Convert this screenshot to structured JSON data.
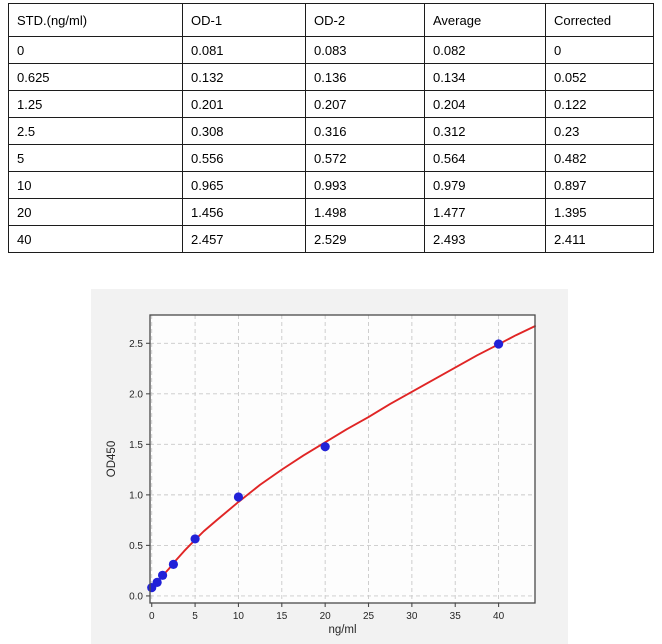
{
  "table": {
    "headers": [
      "STD.(ng/ml)",
      "OD-1",
      "OD-2",
      "Average",
      "Corrected"
    ],
    "rows": [
      [
        "0",
        "0.081",
        "0.083",
        "0.082",
        "0"
      ],
      [
        "0.625",
        "0.132",
        "0.136",
        "0.134",
        "0.052"
      ],
      [
        "1.25",
        "0.201",
        "0.207",
        "0.204",
        "0.122"
      ],
      [
        "2.5",
        "0.308",
        "0.316",
        "0.312",
        "0.23"
      ],
      [
        "5",
        "0.556",
        "0.572",
        "0.564",
        "0.482"
      ],
      [
        "10",
        "0.965",
        "0.993",
        "0.979",
        "0.897"
      ],
      [
        "20",
        "1.456",
        "1.498",
        "1.477",
        "1.395"
      ],
      [
        "40",
        "2.457",
        "2.529",
        "2.493",
        "2.411"
      ]
    ]
  },
  "chart_data": {
    "type": "scatter",
    "title": "",
    "xlabel": "ng/ml",
    "ylabel": "OD450",
    "xlim": [
      -0.2,
      44.2
    ],
    "ylim": [
      -0.07,
      2.78
    ],
    "grid": "dashed",
    "legend_position": "none",
    "x_ticks": [
      0,
      5,
      10,
      15,
      20,
      25,
      30,
      35,
      40
    ],
    "x_tick_labels": [
      "0",
      "5",
      "10",
      "15",
      "20",
      "25",
      "30",
      "35",
      "40"
    ],
    "y_ticks": [
      0.0,
      0.5,
      1.0,
      1.5,
      2.0,
      2.5
    ],
    "y_tick_labels": [
      "0.0",
      "0.5",
      "1.0",
      "1.5",
      "2.0",
      "2.5"
    ],
    "series": [
      {
        "name": "standard-points",
        "type": "scatter",
        "x": [
          0,
          0.625,
          1.25,
          2.5,
          5,
          10,
          20,
          40
        ],
        "y": [
          0.082,
          0.134,
          0.204,
          0.312,
          0.564,
          0.979,
          1.477,
          2.493
        ]
      },
      {
        "name": "fit-curve",
        "type": "line",
        "x": [
          0,
          0.3,
          0.625,
          1.25,
          2,
          2.5,
          3.75,
          5,
          6,
          7.5,
          10,
          12.5,
          15,
          17.5,
          20,
          22.5,
          25,
          27.5,
          30,
          32.5,
          35,
          37.5,
          40,
          42,
          44.2
        ],
        "y": [
          0.06,
          0.1,
          0.135,
          0.2,
          0.27,
          0.325,
          0.445,
          0.555,
          0.64,
          0.75,
          0.93,
          1.1,
          1.25,
          1.39,
          1.52,
          1.65,
          1.77,
          1.9,
          2.02,
          2.14,
          2.26,
          2.38,
          2.49,
          2.58,
          2.67
        ]
      }
    ],
    "colors": {
      "points": "#2121d8",
      "curve": "#e02525",
      "figure_bg": "#f2f2f2",
      "plot_bg": "#fdfdfd",
      "grid": "#c9c9c9",
      "frame": "#4a4a4a",
      "tick_text": "#262626"
    }
  }
}
